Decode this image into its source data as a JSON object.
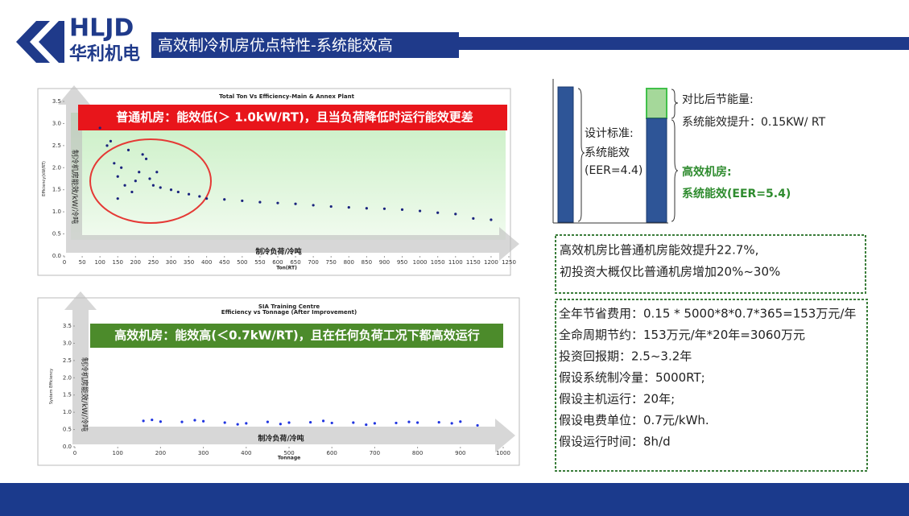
{
  "header": {
    "logo_en": "HLJD",
    "logo_cn": "华利机电",
    "title": "高效制冷机房优点特性-系统能效高"
  },
  "chart_data": [
    {
      "type": "scatter",
      "title": "Total Ton Vs Efficiency-Main & Annex Plant",
      "x_label": "Ton(RT)",
      "y_label": "Efficiency(kW/RT)",
      "x_label_cn": "制冷负荷/冷吨",
      "y_label_cn": "制冷机房能效/kW/冷吨",
      "annotation": "普通机房：能效低(＞ 1.0kW/RT)，且当负荷降低时运行能效更差",
      "xlim": [
        0,
        1250
      ],
      "ylim": [
        0,
        3.5
      ],
      "xticks": [
        0,
        50,
        100,
        150,
        200,
        250,
        300,
        350,
        400,
        450,
        500,
        550,
        600,
        650,
        700,
        750,
        800,
        850,
        900,
        950,
        1000,
        1050,
        1100,
        1150,
        1200,
        1250
      ],
      "yticks": [
        {
          "value": 0,
          "label": "0.0"
        },
        0.5,
        {
          "value": 1,
          "label": "1.0"
        },
        1.5,
        {
          "value": 2,
          "label": "2.0"
        },
        2.5,
        {
          "value": 3,
          "label": "3.0"
        },
        3.5
      ],
      "color": "#1a237e",
      "x": [
        100,
        120,
        140,
        150,
        170,
        190,
        210,
        230,
        250,
        270,
        300,
        320,
        350,
        380,
        400,
        450,
        500,
        550,
        600,
        650,
        700,
        750,
        800,
        850,
        900,
        950,
        1000,
        1050,
        1100,
        1150,
        1200,
        130,
        160,
        200,
        220,
        260,
        150,
        180,
        240
      ],
      "values": [
        2.9,
        2.5,
        2.1,
        1.8,
        1.6,
        1.45,
        1.9,
        2.2,
        1.6,
        1.55,
        1.5,
        1.45,
        1.4,
        1.35,
        1.3,
        1.28,
        1.25,
        1.22,
        1.2,
        1.18,
        1.15,
        1.12,
        1.1,
        1.08,
        1.07,
        1.05,
        1.02,
        0.98,
        0.95,
        0.85,
        0.82,
        2.6,
        2.0,
        1.7,
        2.3,
        1.9,
        1.3,
        2.4,
        1.75
      ]
    },
    {
      "type": "scatter",
      "title": "SIA Training Centre",
      "subtitle": "Efficiency vs Tonnage (After Improvement)",
      "x_label": "Tonnage",
      "y_label": "System Efficiency",
      "x_label_cn": "制冷负荷/冷吨",
      "y_label_cn": "制冷机房能效/kW/冷吨",
      "annotation": "高效机房：能效高(＜0.7kW/RT)，且在任何负荷工况下都高效运行",
      "xlim": [
        0,
        1000
      ],
      "ylim": [
        0,
        3.5
      ],
      "xticks": [
        0,
        100,
        200,
        300,
        400,
        500,
        600,
        700,
        800,
        900,
        1000
      ],
      "yticks": [
        {
          "value": 0,
          "label": "0.0"
        },
        0.5,
        {
          "value": 1,
          "label": "1.0"
        },
        1.5,
        {
          "value": 2,
          "label": "2.0"
        },
        2.5,
        {
          "value": 3,
          "label": "3.0"
        },
        3.5
      ],
      "color": "#2035e0",
      "x": [
        160,
        200,
        250,
        300,
        350,
        400,
        450,
        500,
        550,
        600,
        650,
        700,
        750,
        800,
        850,
        900,
        180,
        280,
        380,
        480,
        580,
        680,
        780,
        880,
        940
      ],
      "values": [
        0.75,
        0.73,
        0.72,
        0.74,
        0.7,
        0.68,
        0.72,
        0.7,
        0.71,
        0.69,
        0.7,
        0.68,
        0.69,
        0.7,
        0.71,
        0.73,
        0.78,
        0.77,
        0.65,
        0.66,
        0.75,
        0.64,
        0.72,
        0.68,
        0.62
      ]
    }
  ],
  "diagram": {
    "design_label": [
      "设计标准:",
      "系统能效",
      "(EER=4.4)"
    ],
    "saving_label": [
      "对比后节能量:",
      "系统能效提升：0.15KW/ RT"
    ],
    "efficient_label": [
      "高效机房:",
      "系统能效(EER=5.4)"
    ]
  },
  "box1": [
    "高效机房比普通机房能效提升22.7%,",
    "初投资大概仅比普通机房增加20%~30%"
  ],
  "box2": [
    "全年节省费用：0.15 * 5000*8*0.7*365=153万元/年",
    "全命周期节约：153万元/年*20年=3060万元",
    "投资回报期：2.5~3.2年",
    "假设系统制冷量：5000RT;",
    "假设主机运行：20年;",
    "假设电费单位：0.7元/kWh.",
    "假设运行时间：8h/d"
  ]
}
